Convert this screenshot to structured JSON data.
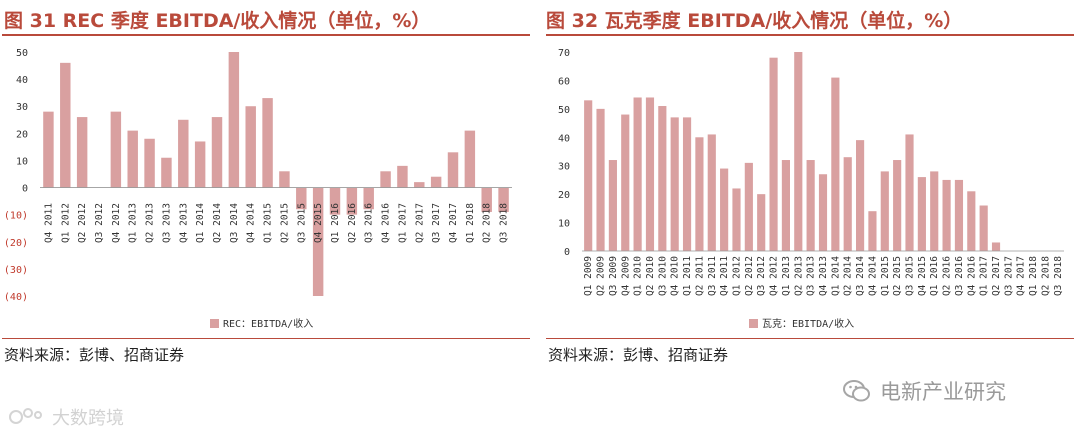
{
  "left_figure": {
    "title": "图 31 REC 季度 EBITDA/收入情况（单位，%）",
    "source": "资料来源：彭博、招商证券"
  },
  "right_figure": {
    "title": "图 32 瓦克季度 EBITDA/收入情况（单位，%）",
    "source": "资料来源：彭博、招商证券"
  },
  "watermarks": {
    "right": "电新产业研究",
    "left": "大数跨境"
  },
  "colors": {
    "accent": "#b94a3b",
    "bar": "#d9a0a0"
  },
  "chart_data": [
    {
      "type": "bar",
      "categories": [
        "Q4 2011",
        "Q1 2012",
        "Q2 2012",
        "Q3 2012",
        "Q4 2012",
        "Q1 2013",
        "Q2 2013",
        "Q3 2013",
        "Q4 2013",
        "Q1 2014",
        "Q2 2014",
        "Q3 2014",
        "Q4 2014",
        "Q1 2015",
        "Q2 2015",
        "Q3 2015",
        "Q4 2015",
        "Q1 2016",
        "Q2 2016",
        "Q3 2016",
        "Q4 2016",
        "Q1 2017",
        "Q2 2017",
        "Q3 2017",
        "Q4 2017",
        "Q1 2018",
        "Q2 2018",
        "Q3 2018"
      ],
      "series": [
        {
          "name": "REC：EBITDA/收入",
          "values": [
            28,
            46,
            26,
            0,
            28,
            21,
            18,
            11,
            25,
            17,
            26,
            50,
            30,
            33,
            6,
            -8,
            -40,
            -10,
            -10,
            -8,
            6,
            8,
            2,
            4,
            13,
            21,
            -9,
            -9
          ]
        }
      ],
      "yticks": [
        "50",
        "40",
        "30",
        "20",
        "10",
        "0",
        "(10)",
        "(20)",
        "(30)",
        "(40)"
      ],
      "ylim": [
        -40,
        50
      ],
      "legend_position": "bottom",
      "grid": false
    },
    {
      "type": "bar",
      "categories": [
        "Q1 2009",
        "Q2 2009",
        "Q3 2009",
        "Q4 2009",
        "Q1 2010",
        "Q2 2010",
        "Q3 2010",
        "Q4 2010",
        "Q1 2011",
        "Q2 2011",
        "Q3 2011",
        "Q4 2011",
        "Q1 2012",
        "Q2 2012",
        "Q3 2012",
        "Q4 2012",
        "Q1 2013",
        "Q2 2013",
        "Q3 2013",
        "Q4 2013",
        "Q1 2014",
        "Q2 2014",
        "Q3 2014",
        "Q4 2014",
        "Q1 2015",
        "Q2 2015",
        "Q3 2015",
        "Q4 2015",
        "Q1 2016",
        "Q2 2016",
        "Q3 2016",
        "Q4 2016",
        "Q1 2017",
        "Q2 2017",
        "Q3 2017",
        "Q4 2017",
        "Q1 2018",
        "Q2 2018",
        "Q3 2018"
      ],
      "series": [
        {
          "name": "瓦克：EBITDA/收入",
          "values": [
            53,
            50,
            32,
            48,
            54,
            54,
            51,
            47,
            47,
            40,
            41,
            29,
            22,
            31,
            20,
            68,
            32,
            70,
            32,
            27,
            61,
            33,
            39,
            14,
            28,
            32,
            41,
            26,
            28,
            25,
            25,
            21,
            16,
            3,
            0,
            0,
            0,
            0,
            0
          ]
        }
      ],
      "yticks": [
        "70",
        "60",
        "50",
        "40",
        "30",
        "20",
        "10",
        "0"
      ],
      "ylim": [
        0,
        70
      ],
      "legend_position": "bottom",
      "grid": false
    }
  ]
}
